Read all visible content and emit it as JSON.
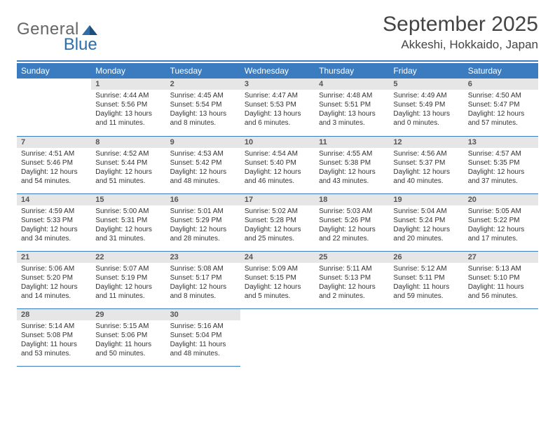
{
  "brand": {
    "word1": "General",
    "word2": "Blue",
    "color_primary": "#3a7cbf",
    "color_text": "#666666"
  },
  "title": "September 2025",
  "location": "Akkeshi, Hokkaido, Japan",
  "colors": {
    "header_bg": "#3a7cbf",
    "header_fg": "#ffffff",
    "daybar_bg": "#e6e6e6",
    "rule": "#3a7cbf"
  },
  "day_headers": [
    "Sunday",
    "Monday",
    "Tuesday",
    "Wednesday",
    "Thursday",
    "Friday",
    "Saturday"
  ],
  "weeks": [
    [
      {
        "n": "",
        "sunrise": "",
        "sunset": "",
        "daylight": ""
      },
      {
        "n": "1",
        "sunrise": "Sunrise: 4:44 AM",
        "sunset": "Sunset: 5:56 PM",
        "daylight": "Daylight: 13 hours and 11 minutes."
      },
      {
        "n": "2",
        "sunrise": "Sunrise: 4:45 AM",
        "sunset": "Sunset: 5:54 PM",
        "daylight": "Daylight: 13 hours and 8 minutes."
      },
      {
        "n": "3",
        "sunrise": "Sunrise: 4:47 AM",
        "sunset": "Sunset: 5:53 PM",
        "daylight": "Daylight: 13 hours and 6 minutes."
      },
      {
        "n": "4",
        "sunrise": "Sunrise: 4:48 AM",
        "sunset": "Sunset: 5:51 PM",
        "daylight": "Daylight: 13 hours and 3 minutes."
      },
      {
        "n": "5",
        "sunrise": "Sunrise: 4:49 AM",
        "sunset": "Sunset: 5:49 PM",
        "daylight": "Daylight: 13 hours and 0 minutes."
      },
      {
        "n": "6",
        "sunrise": "Sunrise: 4:50 AM",
        "sunset": "Sunset: 5:47 PM",
        "daylight": "Daylight: 12 hours and 57 minutes."
      }
    ],
    [
      {
        "n": "7",
        "sunrise": "Sunrise: 4:51 AM",
        "sunset": "Sunset: 5:46 PM",
        "daylight": "Daylight: 12 hours and 54 minutes."
      },
      {
        "n": "8",
        "sunrise": "Sunrise: 4:52 AM",
        "sunset": "Sunset: 5:44 PM",
        "daylight": "Daylight: 12 hours and 51 minutes."
      },
      {
        "n": "9",
        "sunrise": "Sunrise: 4:53 AM",
        "sunset": "Sunset: 5:42 PM",
        "daylight": "Daylight: 12 hours and 48 minutes."
      },
      {
        "n": "10",
        "sunrise": "Sunrise: 4:54 AM",
        "sunset": "Sunset: 5:40 PM",
        "daylight": "Daylight: 12 hours and 46 minutes."
      },
      {
        "n": "11",
        "sunrise": "Sunrise: 4:55 AM",
        "sunset": "Sunset: 5:38 PM",
        "daylight": "Daylight: 12 hours and 43 minutes."
      },
      {
        "n": "12",
        "sunrise": "Sunrise: 4:56 AM",
        "sunset": "Sunset: 5:37 PM",
        "daylight": "Daylight: 12 hours and 40 minutes."
      },
      {
        "n": "13",
        "sunrise": "Sunrise: 4:57 AM",
        "sunset": "Sunset: 5:35 PM",
        "daylight": "Daylight: 12 hours and 37 minutes."
      }
    ],
    [
      {
        "n": "14",
        "sunrise": "Sunrise: 4:59 AM",
        "sunset": "Sunset: 5:33 PM",
        "daylight": "Daylight: 12 hours and 34 minutes."
      },
      {
        "n": "15",
        "sunrise": "Sunrise: 5:00 AM",
        "sunset": "Sunset: 5:31 PM",
        "daylight": "Daylight: 12 hours and 31 minutes."
      },
      {
        "n": "16",
        "sunrise": "Sunrise: 5:01 AM",
        "sunset": "Sunset: 5:29 PM",
        "daylight": "Daylight: 12 hours and 28 minutes."
      },
      {
        "n": "17",
        "sunrise": "Sunrise: 5:02 AM",
        "sunset": "Sunset: 5:28 PM",
        "daylight": "Daylight: 12 hours and 25 minutes."
      },
      {
        "n": "18",
        "sunrise": "Sunrise: 5:03 AM",
        "sunset": "Sunset: 5:26 PM",
        "daylight": "Daylight: 12 hours and 22 minutes."
      },
      {
        "n": "19",
        "sunrise": "Sunrise: 5:04 AM",
        "sunset": "Sunset: 5:24 PM",
        "daylight": "Daylight: 12 hours and 20 minutes."
      },
      {
        "n": "20",
        "sunrise": "Sunrise: 5:05 AM",
        "sunset": "Sunset: 5:22 PM",
        "daylight": "Daylight: 12 hours and 17 minutes."
      }
    ],
    [
      {
        "n": "21",
        "sunrise": "Sunrise: 5:06 AM",
        "sunset": "Sunset: 5:20 PM",
        "daylight": "Daylight: 12 hours and 14 minutes."
      },
      {
        "n": "22",
        "sunrise": "Sunrise: 5:07 AM",
        "sunset": "Sunset: 5:19 PM",
        "daylight": "Daylight: 12 hours and 11 minutes."
      },
      {
        "n": "23",
        "sunrise": "Sunrise: 5:08 AM",
        "sunset": "Sunset: 5:17 PM",
        "daylight": "Daylight: 12 hours and 8 minutes."
      },
      {
        "n": "24",
        "sunrise": "Sunrise: 5:09 AM",
        "sunset": "Sunset: 5:15 PM",
        "daylight": "Daylight: 12 hours and 5 minutes."
      },
      {
        "n": "25",
        "sunrise": "Sunrise: 5:11 AM",
        "sunset": "Sunset: 5:13 PM",
        "daylight": "Daylight: 12 hours and 2 minutes."
      },
      {
        "n": "26",
        "sunrise": "Sunrise: 5:12 AM",
        "sunset": "Sunset: 5:11 PM",
        "daylight": "Daylight: 11 hours and 59 minutes."
      },
      {
        "n": "27",
        "sunrise": "Sunrise: 5:13 AM",
        "sunset": "Sunset: 5:10 PM",
        "daylight": "Daylight: 11 hours and 56 minutes."
      }
    ],
    [
      {
        "n": "28",
        "sunrise": "Sunrise: 5:14 AM",
        "sunset": "Sunset: 5:08 PM",
        "daylight": "Daylight: 11 hours and 53 minutes."
      },
      {
        "n": "29",
        "sunrise": "Sunrise: 5:15 AM",
        "sunset": "Sunset: 5:06 PM",
        "daylight": "Daylight: 11 hours and 50 minutes."
      },
      {
        "n": "30",
        "sunrise": "Sunrise: 5:16 AM",
        "sunset": "Sunset: 5:04 PM",
        "daylight": "Daylight: 11 hours and 48 minutes."
      },
      {
        "n": "",
        "sunrise": "",
        "sunset": "",
        "daylight": ""
      },
      {
        "n": "",
        "sunrise": "",
        "sunset": "",
        "daylight": ""
      },
      {
        "n": "",
        "sunrise": "",
        "sunset": "",
        "daylight": ""
      },
      {
        "n": "",
        "sunrise": "",
        "sunset": "",
        "daylight": ""
      }
    ]
  ]
}
